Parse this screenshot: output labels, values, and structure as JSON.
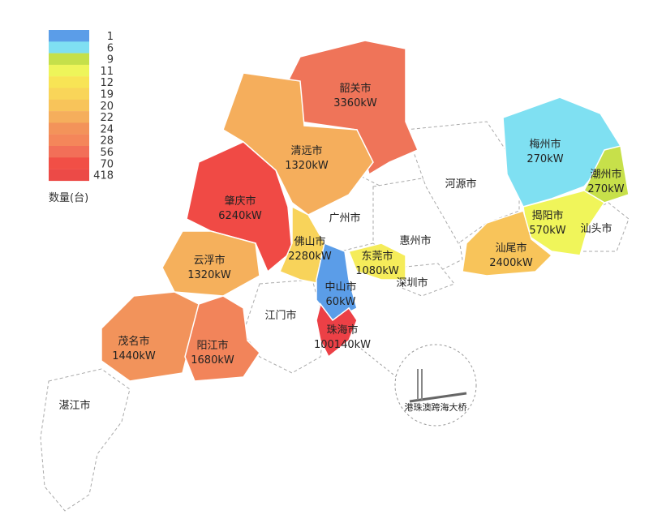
{
  "legend": {
    "title": "数量(台)",
    "entries": [
      {
        "value": "1",
        "color": "#5b9de8"
      },
      {
        "value": "6",
        "color": "#7fdff2"
      },
      {
        "value": "9",
        "color": "#c5e04a"
      },
      {
        "value": "11",
        "color": "#eef55a"
      },
      {
        "value": "12",
        "color": "#f8e455"
      },
      {
        "value": "19",
        "color": "#f9d559"
      },
      {
        "value": "20",
        "color": "#f8c45a"
      },
      {
        "value": "22",
        "color": "#f5ae5c"
      },
      {
        "value": "24",
        "color": "#f3935a"
      },
      {
        "value": "28",
        "color": "#f4865a"
      },
      {
        "value": "56",
        "color": "#f26f58"
      },
      {
        "value": "70",
        "color": "#f14f46"
      },
      {
        "value": "418",
        "color": "#ec4a47"
      }
    ]
  },
  "regions": [
    {
      "name": "韶关市",
      "value": "3360kW",
      "color": "#ef7459"
    },
    {
      "name": "清远市",
      "value": "1320kW",
      "color": "#f5ae5c"
    },
    {
      "name": "肇庆市",
      "value": "6240kW",
      "color": "#f04a45"
    },
    {
      "name": "云浮市",
      "value": "1320kW",
      "color": "#f5b05c"
    },
    {
      "name": "茂名市",
      "value": "1440kW",
      "color": "#f2935b"
    },
    {
      "name": "阳江市",
      "value": "1680kW",
      "color": "#f2845a"
    },
    {
      "name": "佛山市",
      "value": "2280kW",
      "color": "#f8d35a"
    },
    {
      "name": "中山市",
      "value": "60kW",
      "color": "#5b9de8"
    },
    {
      "name": "珠海市",
      "value": "100140kW",
      "color": "#ec4046"
    },
    {
      "name": "东莞市",
      "value": "1080kW",
      "color": "#f5ec5a"
    },
    {
      "name": "梅州市",
      "value": "270kW",
      "color": "#7fe0f2"
    },
    {
      "name": "潮州市",
      "value": "270kW",
      "color": "#c7e04a"
    },
    {
      "name": "揭阳市",
      "value": "570kW",
      "color": "#f0f55a"
    },
    {
      "name": "汕尾市",
      "value": "2400kW",
      "color": "#f8c45a"
    }
  ],
  "unshaded": [
    "广州市",
    "惠州市",
    "深圳市",
    "河源市",
    "江门市",
    "湛江市",
    "汕头市"
  ],
  "inset_label": "港珠澳跨海大桥"
}
